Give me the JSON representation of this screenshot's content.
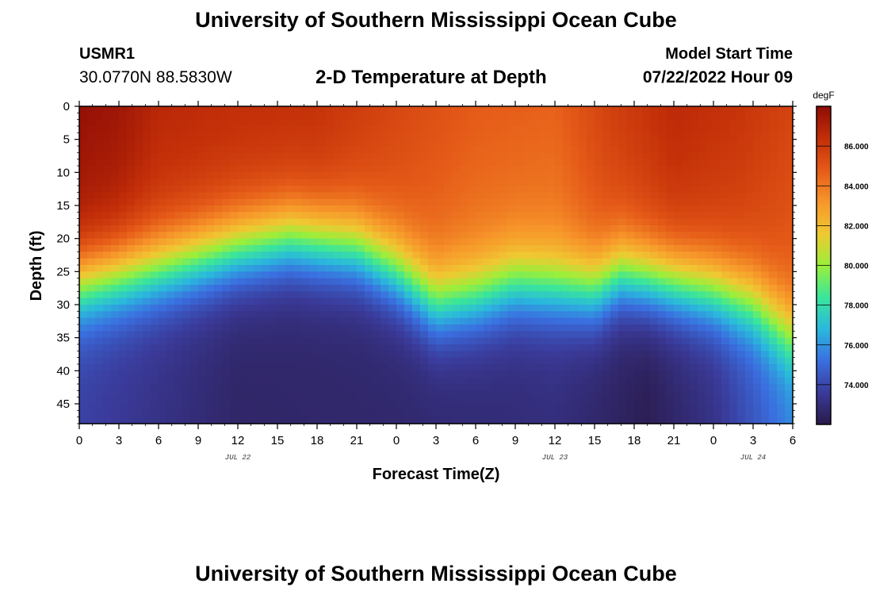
{
  "header": {
    "title": "University of Southern Mississippi Ocean Cube",
    "station_id": "USMR1",
    "coordinates": "30.0770N  88.5830W",
    "subtitle": "2-D Temperature at Depth",
    "model_label": "Model Start Time",
    "model_time": "07/22/2022 Hour 09"
  },
  "footer": {
    "title": "University of Southern Mississippi Ocean Cube"
  },
  "chart_data": {
    "type": "heatmap",
    "title": "2-D Temperature at Depth",
    "xlabel": "Forecast Time(Z)",
    "ylabel": "Depth (ft)",
    "x_hours_range": [
      0,
      54
    ],
    "x_tick_labels": [
      "0",
      "3",
      "6",
      "9",
      "12",
      "15",
      "18",
      "21",
      "0",
      "3",
      "6",
      "9",
      "12",
      "15",
      "18",
      "21",
      "0",
      "3",
      "6"
    ],
    "date_labels": [
      "JUL 22",
      "JUL 23",
      "JUL 24"
    ],
    "date_label_hours": [
      12,
      36,
      51
    ],
    "y_range": [
      0,
      48
    ],
    "y_ticks": [
      0,
      5,
      10,
      15,
      20,
      25,
      30,
      35,
      40,
      45
    ],
    "colorbar": {
      "unit": "degF",
      "range": [
        72,
        88
      ],
      "tick_values": [
        74,
        76,
        78,
        80,
        82,
        84,
        86
      ],
      "tick_labels": [
        "74.000",
        "76.000",
        "78.000",
        "80.000",
        "82.000",
        "84.000",
        "86.000"
      ],
      "colors": [
        "#2a1a4a",
        "#3a3a99",
        "#3a6fe0",
        "#2ab8dd",
        "#3ae69a",
        "#9aef3a",
        "#f0c832",
        "#f7962a",
        "#e55a18",
        "#c22e08",
        "#8e0c05"
      ]
    },
    "thermocline_depth_ft": [
      {
        "hour": 0,
        "depth": 27
      },
      {
        "hour": 6,
        "depth": 24.5
      },
      {
        "hour": 12,
        "depth": 21.5
      },
      {
        "hour": 16,
        "depth": 20
      },
      {
        "hour": 21,
        "depth": 21.5
      },
      {
        "hour": 24,
        "depth": 25
      },
      {
        "hour": 27,
        "depth": 30
      },
      {
        "hour": 30,
        "depth": 29
      },
      {
        "hour": 33,
        "depth": 27
      },
      {
        "hour": 36,
        "depth": 27.5
      },
      {
        "hour": 39,
        "depth": 28
      },
      {
        "hour": 41,
        "depth": 25.5
      },
      {
        "hour": 44,
        "depth": 26.5
      },
      {
        "hour": 48,
        "depth": 28
      },
      {
        "hour": 51,
        "depth": 30
      },
      {
        "hour": 54,
        "depth": 35
      }
    ],
    "surface_temperature_degF": [
      {
        "hour": 0,
        "temp": 87.8
      },
      {
        "hour": 3,
        "temp": 87.5
      },
      {
        "hour": 6,
        "temp": 86.7
      },
      {
        "hour": 12,
        "temp": 86.4
      },
      {
        "hour": 18,
        "temp": 86.3
      },
      {
        "hour": 24,
        "temp": 85.5
      },
      {
        "hour": 30,
        "temp": 84.8
      },
      {
        "hour": 36,
        "temp": 84.6
      },
      {
        "hour": 40,
        "temp": 85.7
      },
      {
        "hour": 45,
        "temp": 86.6
      },
      {
        "hour": 50,
        "temp": 86.2
      },
      {
        "hour": 54,
        "temp": 85.6
      }
    ],
    "bottom_temperature_degF": [
      {
        "hour": 0,
        "temp": 73.8
      },
      {
        "hour": 12,
        "temp": 72.6
      },
      {
        "hour": 24,
        "temp": 72.7
      },
      {
        "hour": 36,
        "temp": 73.0
      },
      {
        "hour": 43,
        "temp": 72.2
      },
      {
        "hour": 48,
        "temp": 73.2
      },
      {
        "hour": 54,
        "temp": 75.6
      }
    ]
  }
}
